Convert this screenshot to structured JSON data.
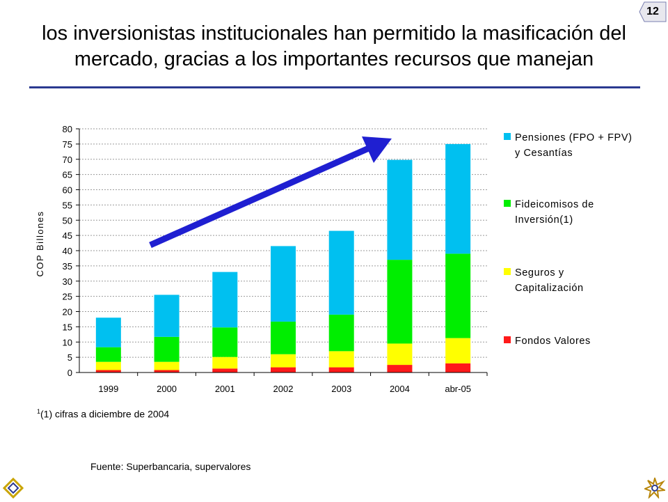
{
  "page_number": "12",
  "title_lines": [
    "los inversionistas institucionales han permitido la masificación del",
    "mercado, gracias a los importantes recursos que manejan"
  ],
  "footnote": {
    "mark": "1",
    "text": "(1) cifras a diciembre de 2004"
  },
  "source": "Fuente: Superbancaria, supervalores",
  "logos": {
    "left": "diamond-logo-icon",
    "right": "star-burst-logo-icon"
  },
  "colors": {
    "accent_rule": "#2b3990",
    "arrow": "#1f1fd1"
  },
  "chart_data": {
    "type": "bar",
    "stacked": true,
    "categories": [
      "1999",
      "2000",
      "2001",
      "2002",
      "2003",
      "2004",
      "abr-05"
    ],
    "ylabel": "COP Billones",
    "ylim": [
      0,
      80
    ],
    "yticks": [
      0,
      5,
      10,
      15,
      20,
      25,
      30,
      35,
      40,
      45,
      50,
      55,
      60,
      65,
      70,
      75,
      80
    ],
    "grid": true,
    "legend_position": "right",
    "series": [
      {
        "name": "Fondos Valores",
        "color": "#ff1a1a",
        "values": [
          0.8,
          0.8,
          1.3,
          1.7,
          1.7,
          2.5,
          3.0
        ]
      },
      {
        "name": "Seguros y Capitalización",
        "color": "#ffff00",
        "values": [
          2.7,
          2.7,
          3.8,
          4.3,
          5.3,
          7.0,
          8.3
        ]
      },
      {
        "name": "Fideicomisos de Inversión(1)",
        "color": "#00ee00",
        "values": [
          4.8,
          8.2,
          9.7,
          10.7,
          12.0,
          27.5,
          27.7
        ]
      },
      {
        "name": "Pensiones (FPO + FPV) y Cesantías",
        "color": "#00c0f0",
        "values": [
          9.7,
          13.8,
          18.2,
          24.8,
          27.5,
          32.8,
          36.0
        ]
      }
    ],
    "legend": [
      {
        "lines": [
          "Pensiones (FPO + FPV)",
          "y Cesantías"
        ],
        "color": "#00c0f0"
      },
      {
        "lines": [
          "Fideicomisos de",
          "Inversión(1)"
        ],
        "color": "#00ee00"
      },
      {
        "lines": [
          "Seguros y",
          "Capitalización"
        ],
        "color": "#ffff00"
      },
      {
        "lines": [
          "Fondos Valores"
        ],
        "color": "#ff1a1a"
      }
    ]
  }
}
